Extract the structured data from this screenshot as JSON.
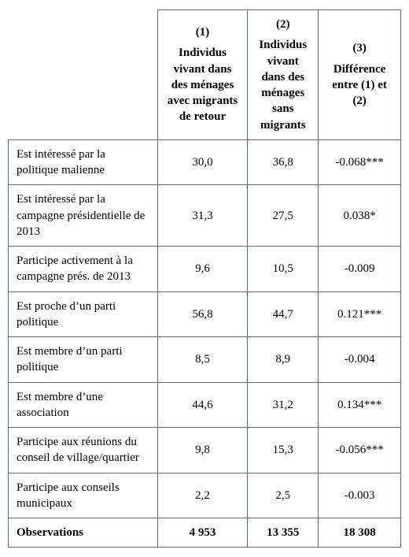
{
  "table": {
    "type": "table",
    "columns": [
      {
        "key": "label",
        "header_num": "",
        "header_text": ""
      },
      {
        "key": "c1",
        "header_num": "(1)",
        "header_text": "Individus vivant dans des ménages avec migrants de retour"
      },
      {
        "key": "c2",
        "header_num": "(2)",
        "header_text": "Individus vivant dans des ménages sans migrants"
      },
      {
        "key": "c3",
        "header_num": "(3)",
        "header_text": "Différence entre (1) et (2)"
      }
    ],
    "rows": [
      {
        "label": "Est intéressé par la politique malienne",
        "c1": "30,0",
        "c2": "36,8",
        "c3": "-0.068***"
      },
      {
        "label": "Est intéressé par la campagne présidentielle de 2013",
        "c1": "31,3",
        "c2": "27,5",
        "c3": "0.038*"
      },
      {
        "label": "Participe activement à la campagne prés. de 2013",
        "c1": "9,6",
        "c2": "10,5",
        "c3": "-0.009"
      },
      {
        "label": "Est proche d’un parti politique",
        "c1": "56,8",
        "c2": "44,7",
        "c3": "0.121***"
      },
      {
        "label": "Est membre d’un parti politique",
        "c1": "8,5",
        "c2": "8,9",
        "c3": "-0.004"
      },
      {
        "label": "Est membre d’une association",
        "c1": "44,6",
        "c2": "31,2",
        "c3": "0.134***"
      },
      {
        "label": "Participe aux réunions du conseil de village/quartier",
        "c1": "9,8",
        "c2": "15,3",
        "c3": "-0.056***"
      },
      {
        "label": "Participe aux conseils municipaux",
        "c1": "2,2",
        "c2": "2,5",
        "c3": "-0.003"
      }
    ],
    "observations": {
      "label": "Observations",
      "c1": "4 953",
      "c2": "13 355",
      "c3": "18 308"
    },
    "colors": {
      "border": "#5a6f70",
      "text": "#000000",
      "background": "#ffffff"
    },
    "font": {
      "family": "Georgia, Times New Roman, serif",
      "size_pt": 11
    },
    "col_widths_pct": [
      38,
      23,
      18,
      21
    ]
  }
}
